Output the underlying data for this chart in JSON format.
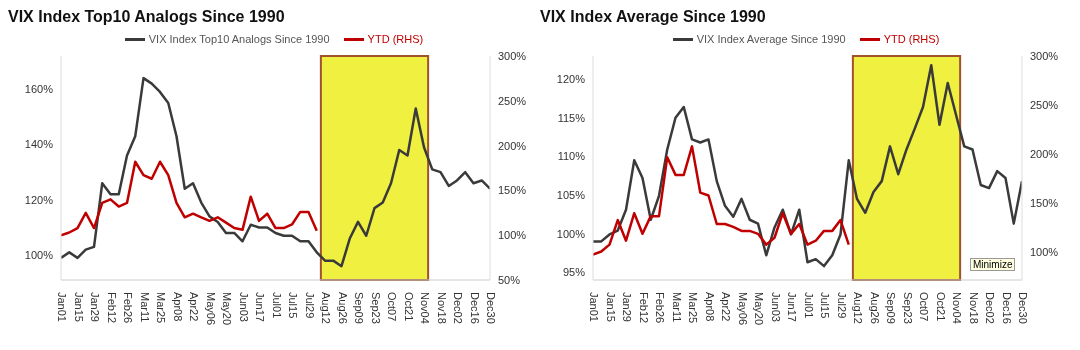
{
  "chart_data": [
    {
      "type": "line",
      "title": "VIX Index Top10 Analogs Since 1990",
      "legend": "top",
      "categories": [
        "Jan01",
        null,
        "Jan15",
        null,
        "Jan29",
        null,
        "Feb12",
        null,
        "Feb26",
        null,
        "Mar11",
        null,
        "Mar25",
        null,
        "Apr08",
        null,
        "Apr22",
        null,
        "May06",
        null,
        "May20",
        null,
        "Jun03",
        null,
        "Jun17",
        null,
        "Jul01",
        null,
        "Jul15",
        null,
        "Jul29",
        null,
        "Aug12",
        null,
        "Aug26",
        null,
        "Sep09",
        null,
        "Sep23",
        null,
        "Oct07",
        null,
        "Oct21",
        null,
        "Nov04",
        null,
        "Nov18",
        null,
        "Dec02",
        null,
        "Dec16",
        null,
        "Dec30"
      ],
      "series": [
        {
          "name": "VIX Index Top10 Analogs Since 1990",
          "color": "#3a3a3a",
          "values": [
            99,
            101,
            99,
            102,
            103,
            126,
            122,
            122,
            136,
            143,
            164,
            162,
            159,
            155,
            143,
            124,
            126,
            119,
            114,
            112,
            108,
            108,
            105,
            111,
            110,
            110,
            108,
            107,
            107,
            105,
            105,
            101,
            98,
            98,
            96,
            106,
            112,
            107,
            117,
            119,
            126,
            138,
            136,
            153,
            139,
            131,
            130,
            125,
            127,
            130,
            126,
            127,
            124
          ]
        },
        {
          "name": "YTD (RHS)",
          "color": "#c00000",
          "axis": "y2",
          "values": [
            100,
            103,
            108,
            125,
            108,
            136,
            140,
            132,
            136,
            182,
            167,
            163,
            182,
            167,
            136,
            120,
            124,
            120,
            116,
            120,
            114,
            108,
            106,
            143,
            116,
            124,
            108,
            108,
            112,
            126,
            126,
            105,
            null,
            null,
            null,
            null,
            null,
            null,
            null,
            null,
            null,
            null,
            null,
            null,
            null,
            null,
            null,
            null,
            null,
            null,
            null,
            null,
            null
          ]
        }
      ],
      "ylim": [
        91,
        172
      ],
      "yticks": [
        {
          "value": 100,
          "label": "100%"
        },
        {
          "value": 120,
          "label": "120%"
        },
        {
          "value": 140,
          "label": "140%"
        },
        {
          "value": 160,
          "label": "160%"
        }
      ],
      "y2lim": [
        50,
        300
      ],
      "y2ticks": [
        {
          "value": 50,
          "label": "50%"
        },
        {
          "value": 100,
          "label": "100%"
        },
        {
          "value": 150,
          "label": "150%"
        },
        {
          "value": 200,
          "label": "200%"
        },
        {
          "value": 250,
          "label": "250%"
        },
        {
          "value": 300,
          "label": "300%"
        }
      ],
      "bands": [
        {
          "axis": "x",
          "from": "Aug12",
          "to": "Nov04",
          "color": "#f0f040"
        }
      ]
    },
    {
      "type": "line",
      "title": "VIX Index Average Since 1990",
      "legend": "top",
      "categories": [
        "Jan01",
        null,
        "Jan15",
        null,
        "Jan29",
        null,
        "Feb12",
        null,
        "Feb26",
        null,
        "Mar11",
        null,
        "Mar25",
        null,
        "Apr08",
        null,
        "Apr22",
        null,
        "May06",
        null,
        "May20",
        null,
        "Jun03",
        null,
        "Jun17",
        null,
        "Jul01",
        null,
        "Jul15",
        null,
        "Jul29",
        null,
        "Aug12",
        null,
        "Aug26",
        null,
        "Sep09",
        null,
        "Sep23",
        null,
        "Oct07",
        null,
        "Oct21",
        null,
        "Nov04",
        null,
        "Nov18",
        null,
        "Dec02",
        null,
        "Dec16",
        null,
        "Dec30"
      ],
      "series": [
        {
          "name": "VIX Index Average Since 1990",
          "color": "#3a3a3a",
          "values": [
            99.0,
            99.0,
            99.9,
            100.4,
            103.1,
            109.5,
            107.2,
            101.8,
            104.9,
            110.9,
            115.0,
            116.4,
            112.2,
            111.8,
            112.2,
            106.8,
            103.6,
            102.2,
            104.5,
            101.8,
            101.3,
            97.2,
            100.8,
            103.1,
            99.9,
            103.1,
            96.3,
            96.7,
            95.8,
            97.2,
            99.9,
            109.5,
            104.5,
            102.7,
            105.4,
            106.8,
            111.3,
            107.7,
            110.9,
            113.6,
            116.4,
            121.8,
            114.1,
            119.5,
            115.4,
            111.3,
            110.9,
            106.3,
            105.9,
            108.1,
            107.2,
            101.3,
            106.8
          ]
        },
        {
          "name": "YTD (RHS)",
          "color": "#c00000",
          "axis": "y2",
          "values": [
            98,
            101,
            108,
            133,
            112,
            140,
            119,
            137,
            137,
            197,
            179,
            179,
            208,
            161,
            158,
            129,
            129,
            126,
            122,
            122,
            119,
            108,
            115,
            140,
            119,
            129,
            108,
            112,
            122,
            122,
            133,
            108,
            null,
            null,
            null,
            null,
            null,
            null,
            null,
            null,
            null,
            null,
            null,
            null,
            null,
            null,
            null,
            null,
            null,
            null,
            null,
            null,
            null
          ]
        }
      ],
      "ylim": [
        94,
        123
      ],
      "yticks": [
        {
          "value": 95,
          "label": "95%"
        },
        {
          "value": 100,
          "label": "100%"
        },
        {
          "value": 105,
          "label": "105%"
        },
        {
          "value": 110,
          "label": "110%"
        },
        {
          "value": 115,
          "label": "115%"
        },
        {
          "value": 120,
          "label": "120%"
        }
      ],
      "y2lim": [
        72,
        300
      ],
      "y2ticks": [
        {
          "value": 100,
          "label": "100%"
        },
        {
          "value": 150,
          "label": "150%"
        },
        {
          "value": 200,
          "label": "200%"
        },
        {
          "value": 250,
          "label": "250%"
        },
        {
          "value": 300,
          "label": "300%"
        }
      ],
      "bands": [
        {
          "axis": "x",
          "from": "Aug12",
          "to": "Nov04",
          "color": "#f0f040"
        }
      ],
      "annotations": [
        "Minimize"
      ]
    }
  ]
}
